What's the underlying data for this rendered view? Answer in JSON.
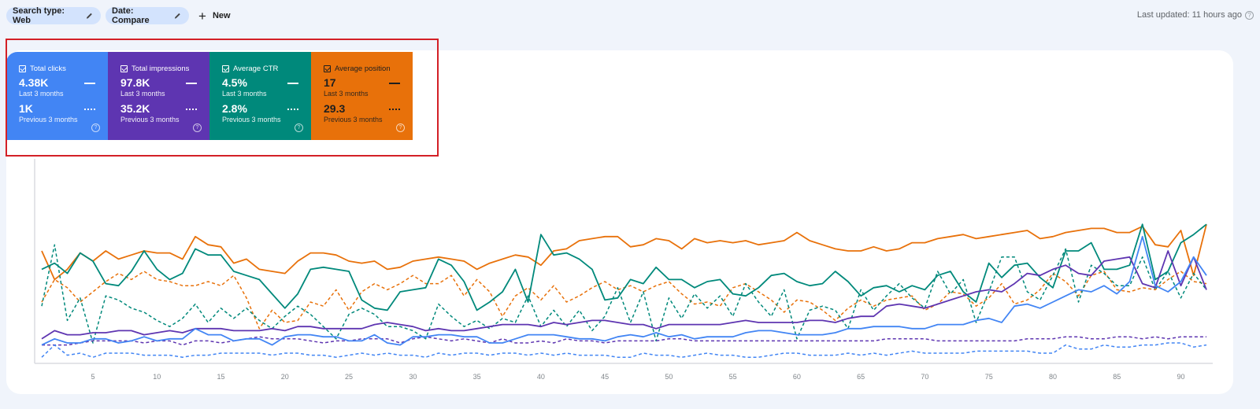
{
  "toolbar": {
    "filters": [
      {
        "label": "Search type: Web",
        "icon": "pencil-icon"
      },
      {
        "label": "Date: Compare",
        "icon": "pencil-icon"
      }
    ],
    "new_label": "New",
    "new_icon": "plus-icon",
    "last_updated": "Last updated: 11 hours ago",
    "help_icon": "help-circle-icon"
  },
  "metrics": [
    {
      "id": "clicks",
      "label": "Total clicks",
      "current": "4.38K",
      "current_period": "Last 3 months",
      "previous": "1K",
      "previous_period": "Previous 3 months",
      "color": "#4285f4",
      "checked": true
    },
    {
      "id": "impressions",
      "label": "Total impressions",
      "current": "97.8K",
      "current_period": "Last 3 months",
      "previous": "35.2K",
      "previous_period": "Previous 3 months",
      "color": "#5e35b1",
      "checked": true
    },
    {
      "id": "ctr",
      "label": "Average CTR",
      "current": "4.5%",
      "current_period": "Last 3 months",
      "previous": "2.8%",
      "previous_period": "Previous 3 months",
      "color": "#00897b",
      "checked": true
    },
    {
      "id": "position",
      "label": "Average position",
      "current": "17",
      "current_period": "Last 3 months",
      "previous": "29.3",
      "previous_period": "Previous 3 months",
      "color": "#e8710a",
      "checked": true
    }
  ],
  "highlight_color": "#d32027",
  "chart_data": {
    "type": "line",
    "title": "",
    "xlabel": "",
    "ylabel": "",
    "x_ticks": [
      5,
      10,
      15,
      20,
      25,
      30,
      35,
      40,
      45,
      50,
      55,
      60,
      65,
      70,
      75,
      80,
      85,
      90
    ],
    "x_range": [
      1,
      92
    ],
    "grid": false,
    "legend": "metric cards above chart (solid = Last 3 months, dashed = Previous 3 months)",
    "note": "values are relative plot heights (0 = baseline, 100 = top of plot); y-axes are hidden per metric",
    "series": [
      {
        "name": "Average position (Last 3 months)",
        "color": "#e8710a",
        "style": "solid",
        "values": [
          55,
          41,
          46,
          54,
          50,
          55,
          51,
          53,
          55,
          54,
          54,
          51,
          62,
          58,
          57,
          49,
          51,
          46,
          45,
          44,
          50,
          54,
          54,
          53,
          50,
          49,
          50,
          46,
          47,
          50,
          51,
          52,
          51,
          50,
          46,
          49,
          51,
          53,
          52,
          48,
          55,
          56,
          60,
          61,
          62,
          62,
          57,
          58,
          61,
          60,
          56,
          61,
          59,
          60,
          59,
          60,
          58,
          59,
          60,
          64,
          60,
          58,
          56,
          55,
          55,
          57,
          55,
          56,
          59,
          59,
          61,
          62,
          63,
          61,
          62,
          63,
          64,
          65,
          61,
          62,
          64,
          65,
          66,
          66,
          64,
          64,
          67,
          58,
          57,
          65,
          43,
          68
        ]
      },
      {
        "name": "Average position (Previous 3 months)",
        "color": "#e8710a",
        "style": "dashed",
        "values": [
          30,
          41,
          37,
          30,
          35,
          40,
          44,
          41,
          45,
          41,
          40,
          38,
          38,
          40,
          38,
          43,
          32,
          17,
          26,
          20,
          21,
          30,
          28,
          36,
          26,
          35,
          39,
          36,
          39,
          43,
          39,
          39,
          43,
          33,
          41,
          35,
          23,
          33,
          37,
          31,
          38,
          30,
          33,
          37,
          40,
          36,
          38,
          35,
          38,
          40,
          34,
          29,
          30,
          28,
          37,
          39,
          35,
          31,
          25,
          31,
          30,
          26,
          21,
          27,
          31,
          28,
          31,
          32,
          33,
          26,
          29,
          35,
          34,
          28,
          32,
          39,
          29,
          31,
          36,
          44,
          40,
          33,
          43,
          45,
          36,
          35,
          37,
          36,
          41,
          45,
          40,
          39
        ]
      },
      {
        "name": "Average CTR (Last 3 months)",
        "color": "#00897b",
        "style": "solid",
        "values": [
          46,
          49,
          44,
          54,
          50,
          39,
          38,
          45,
          55,
          46,
          41,
          44,
          56,
          53,
          53,
          45,
          43,
          41,
          34,
          27,
          34,
          46,
          47,
          46,
          45,
          31,
          27,
          26,
          35,
          36,
          37,
          51,
          48,
          40,
          26,
          30,
          35,
          46,
          30,
          63,
          53,
          54,
          51,
          46,
          31,
          32,
          41,
          39,
          47,
          41,
          41,
          37,
          40,
          41,
          34,
          33,
          37,
          43,
          44,
          40,
          38,
          39,
          45,
          40,
          33,
          37,
          38,
          35,
          38,
          36,
          43,
          45,
          35,
          30,
          49,
          42,
          48,
          49,
          42,
          37,
          55,
          55,
          59,
          46,
          46,
          48,
          68,
          41,
          45,
          59,
          63,
          68
        ]
      },
      {
        "name": "Average CTR (Previous 3 months)",
        "color": "#00897b",
        "style": "dashed",
        "values": [
          28,
          58,
          21,
          32,
          10,
          33,
          31,
          27,
          25,
          21,
          18,
          22,
          29,
          20,
          27,
          22,
          27,
          21,
          17,
          23,
          28,
          24,
          18,
          12,
          24,
          27,
          24,
          18,
          18,
          16,
          12,
          29,
          23,
          18,
          21,
          17,
          22,
          20,
          33,
          18,
          26,
          18,
          26,
          16,
          23,
          37,
          20,
          35,
          11,
          32,
          22,
          34,
          27,
          33,
          23,
          39,
          30,
          23,
          36,
          12,
          26,
          28,
          26,
          17,
          36,
          26,
          33,
          39,
          32,
          27,
          45,
          34,
          41,
          20,
          35,
          52,
          52,
          35,
          31,
          43,
          56,
          30,
          48,
          44,
          38,
          38,
          52,
          36,
          45,
          32,
          44,
          36
        ]
      },
      {
        "name": "Total impressions (Last 3 months)",
        "color": "#5e35b1",
        "style": "solid",
        "values": [
          12,
          16,
          14,
          14,
          15,
          15,
          16,
          16,
          14,
          15,
          16,
          15,
          17,
          17,
          17,
          16,
          16,
          16,
          17,
          16,
          18,
          18,
          17,
          17,
          17,
          17,
          19,
          20,
          19,
          18,
          16,
          17,
          16,
          16,
          17,
          18,
          19,
          19,
          19,
          18,
          20,
          19,
          20,
          21,
          21,
          20,
          19,
          19,
          17,
          19,
          19,
          19,
          19,
          19,
          20,
          21,
          20,
          20,
          20,
          20,
          21,
          21,
          20,
          22,
          23,
          23,
          28,
          29,
          28,
          27,
          29,
          31,
          33,
          35,
          36,
          35,
          39,
          44,
          43,
          46,
          48,
          44,
          43,
          50,
          51,
          52,
          39,
          37,
          55,
          38,
          52,
          36
        ]
      },
      {
        "name": "Total impressions (Previous 3 months)",
        "color": "#5e35b1",
        "style": "dashed",
        "values": [
          9,
          9,
          9,
          10,
          11,
          11,
          11,
          11,
          10,
          11,
          11,
          9,
          11,
          11,
          10,
          11,
          12,
          13,
          12,
          12,
          12,
          11,
          10,
          11,
          11,
          12,
          12,
          12,
          10,
          12,
          13,
          12,
          11,
          12,
          11,
          10,
          12,
          10,
          10,
          11,
          10,
          12,
          11,
          11,
          10,
          11,
          11,
          11,
          11,
          12,
          12,
          11,
          11,
          11,
          11,
          11,
          11,
          11,
          11,
          11,
          11,
          11,
          11,
          11,
          11,
          11,
          12,
          12,
          12,
          12,
          11,
          11,
          11,
          11,
          11,
          11,
          11,
          12,
          12,
          12,
          13,
          13,
          12,
          12,
          13,
          13,
          12,
          13,
          12,
          13,
          13,
          13
        ]
      },
      {
        "name": "Total clicks (Last 3 months)",
        "color": "#4285f4",
        "style": "solid",
        "values": [
          9,
          12,
          10,
          10,
          12,
          12,
          10,
          11,
          13,
          11,
          12,
          12,
          17,
          14,
          14,
          11,
          12,
          12,
          9,
          13,
          14,
          14,
          13,
          13,
          11,
          11,
          14,
          10,
          9,
          13,
          13,
          14,
          14,
          13,
          13,
          10,
          10,
          12,
          14,
          14,
          14,
          13,
          12,
          12,
          11,
          13,
          14,
          13,
          15,
          13,
          14,
          12,
          13,
          13,
          13,
          15,
          16,
          16,
          15,
          14,
          14,
          14,
          15,
          17,
          17,
          18,
          18,
          18,
          17,
          17,
          19,
          19,
          19,
          21,
          22,
          20,
          28,
          29,
          27,
          30,
          33,
          36,
          35,
          38,
          34,
          40,
          62,
          38,
          35,
          40,
          52,
          43
        ]
      },
      {
        "name": "Total clicks (Previous 3 months)",
        "color": "#4285f4",
        "style": "dashed",
        "values": [
          3,
          9,
          4,
          5,
          3,
          5,
          5,
          5,
          4,
          4,
          4,
          3,
          4,
          4,
          5,
          5,
          5,
          5,
          4,
          5,
          5,
          4,
          4,
          3,
          4,
          5,
          4,
          5,
          4,
          4,
          3,
          5,
          4,
          5,
          5,
          4,
          5,
          5,
          4,
          5,
          4,
          5,
          4,
          4,
          4,
          3,
          3,
          5,
          4,
          4,
          3,
          4,
          5,
          4,
          4,
          3,
          3,
          4,
          5,
          5,
          4,
          4,
          4,
          5,
          4,
          5,
          4,
          5,
          6,
          5,
          5,
          5,
          5,
          6,
          6,
          6,
          6,
          6,
          5,
          5,
          9,
          7,
          7,
          9,
          8,
          8,
          9,
          9,
          10,
          10,
          8,
          9
        ]
      }
    ]
  }
}
